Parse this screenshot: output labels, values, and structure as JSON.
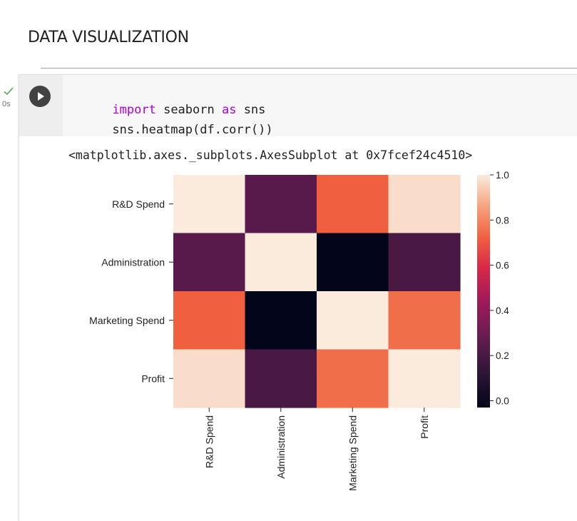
{
  "page": {
    "section_heading": "DATA VISUALIZATION"
  },
  "cell": {
    "status_icon": "check-icon",
    "exec_time": "0s",
    "run_icon": "play-icon",
    "code_lines": [
      {
        "tokens": [
          {
            "text": "import",
            "kind": "keyword"
          },
          {
            "text": " seaborn ",
            "kind": "plain"
          },
          {
            "text": "as",
            "kind": "keyword"
          },
          {
            "text": " sns",
            "kind": "plain"
          }
        ]
      },
      {
        "tokens": [
          {
            "text": "sns.heatmap(df.corr())",
            "kind": "plain"
          }
        ]
      }
    ],
    "output_text": "<matplotlib.axes._subplots.AxesSubplot at 0x7fcef24c4510>"
  },
  "colors": {
    "keyword": "#af00db",
    "status_check": "#4caf50"
  },
  "chart_data": {
    "type": "heatmap",
    "title": "",
    "xlabel": "",
    "ylabel": "",
    "row_labels": [
      "R&D Spend",
      "Administration",
      "Marketing Spend",
      "Profit"
    ],
    "col_labels": [
      "R&D Spend",
      "Administration",
      "Marketing Spend",
      "Profit"
    ],
    "values": [
      [
        1.0,
        0.24,
        0.72,
        0.97
      ],
      [
        0.24,
        1.0,
        -0.03,
        0.2
      ],
      [
        0.72,
        -0.03,
        1.0,
        0.75
      ],
      [
        0.97,
        0.2,
        0.75,
        1.0
      ]
    ],
    "colorbar": {
      "range": [
        -0.03,
        1.0
      ],
      "ticks": [
        1.0,
        0.8,
        0.6,
        0.4,
        0.2,
        0.0
      ],
      "tick_labels": [
        "1.0",
        "0.8",
        "0.6",
        "0.4",
        "0.2",
        "0.0"
      ]
    },
    "colormap": "rocket",
    "grid": false
  }
}
